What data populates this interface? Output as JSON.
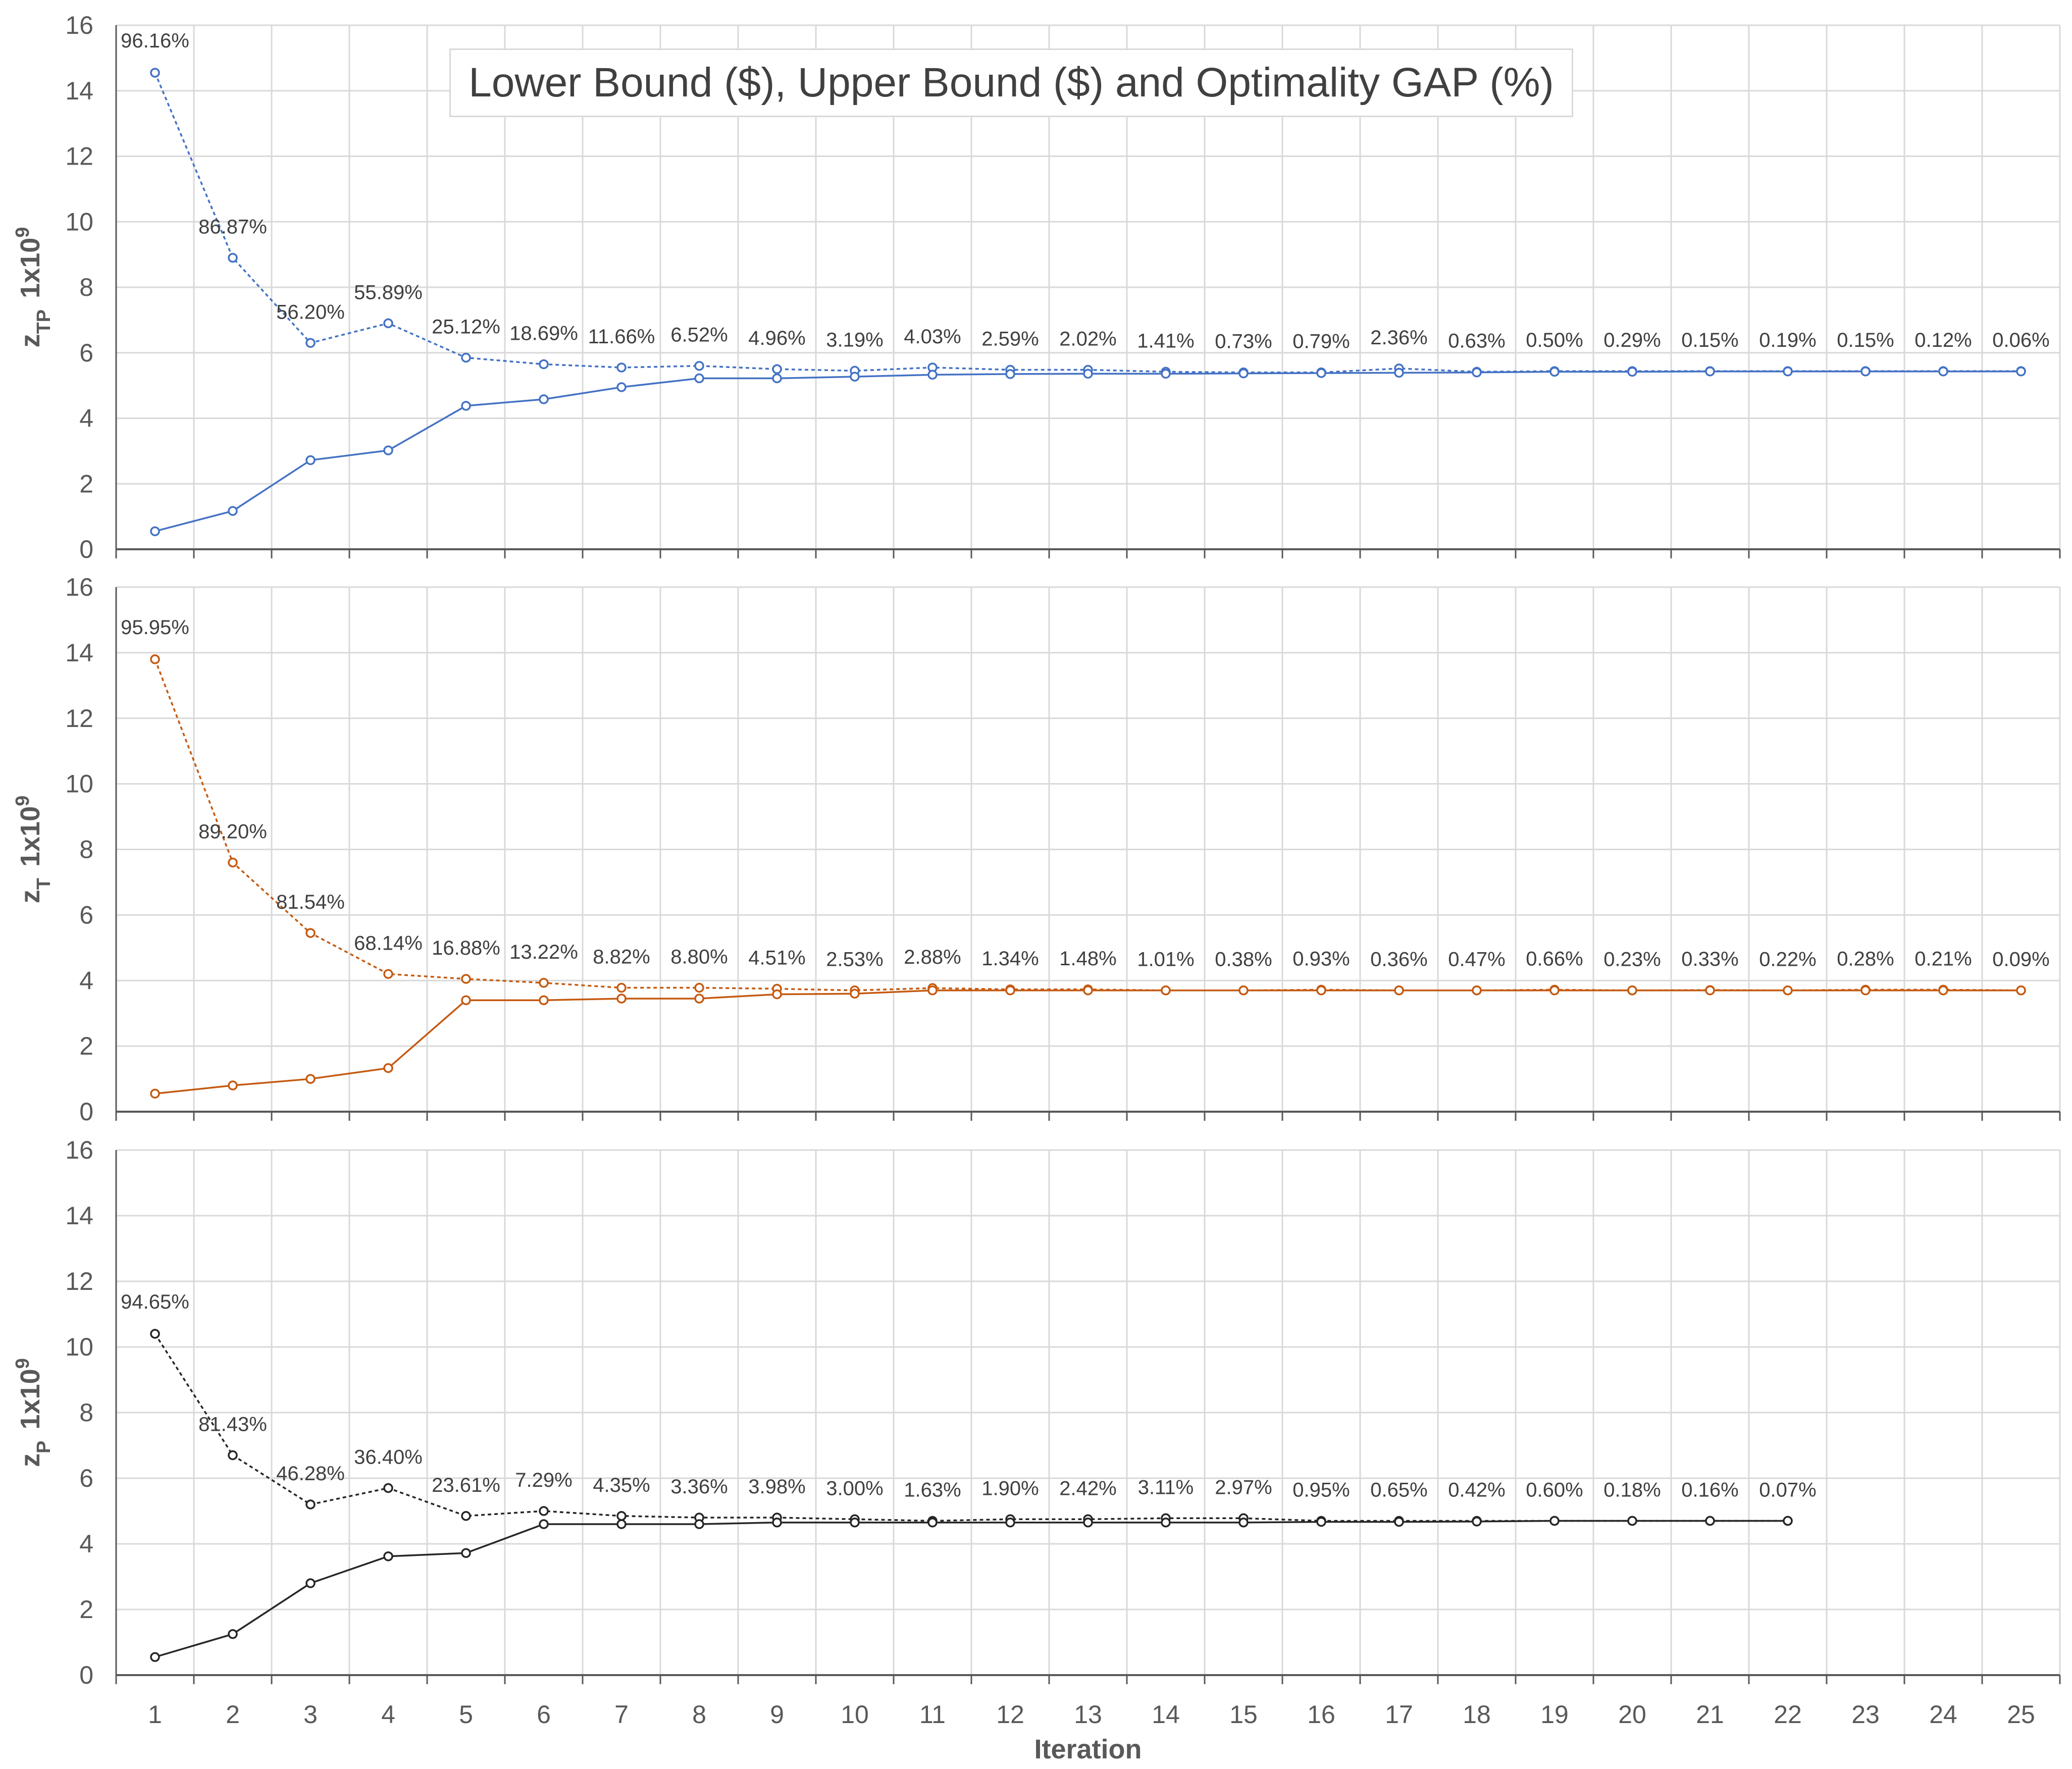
{
  "chart_data": {
    "type": "line",
    "title": "Lower Bound ($), Upper Bound ($) and Optimality GAP (%)",
    "xlabel": "Iteration",
    "grid": true,
    "panels": [
      {
        "ylabel_main": "z",
        "ylabel_sub": "TP",
        "ylabel_scale": "1x10",
        "ylabel_exp": "9",
        "color": "#4472C4",
        "ylim": [
          0,
          16
        ],
        "yticks": [
          "0",
          "2",
          "4",
          "6",
          "8",
          "10",
          "12",
          "14",
          "16"
        ],
        "x": [
          1,
          2,
          3,
          4,
          5,
          6,
          7,
          8,
          9,
          10,
          11,
          12,
          13,
          14,
          15,
          16,
          17,
          18,
          19,
          20,
          21,
          22,
          23,
          24,
          25
        ],
        "series": [
          {
            "style": "dotted",
            "values": [
              14.55,
              8.9,
              6.3,
              6.9,
              5.85,
              5.65,
              5.55,
              5.6,
              5.5,
              5.45,
              5.55,
              5.48,
              5.48,
              5.42,
              5.4,
              5.4,
              5.52,
              5.42,
              5.44,
              5.44,
              5.44,
              5.44,
              5.44,
              5.44,
              5.44
            ]
          },
          {
            "style": "solid",
            "values": [
              0.55,
              1.17,
              2.72,
              3.02,
              4.38,
              4.58,
              4.95,
              5.22,
              5.22,
              5.27,
              5.33,
              5.35,
              5.36,
              5.36,
              5.37,
              5.38,
              5.39,
              5.4,
              5.42,
              5.42,
              5.43,
              5.43,
              5.43,
              5.43,
              5.43
            ]
          }
        ],
        "gap_labels": [
          "96.16%",
          "86.87%",
          "56.20%",
          "55.89%",
          "25.12%",
          "18.69%",
          "11.66%",
          "6.52%",
          "4.96%",
          "3.19%",
          "4.03%",
          "2.59%",
          "2.02%",
          "1.41%",
          "0.73%",
          "0.79%",
          "2.36%",
          "0.63%",
          "0.50%",
          "0.29%",
          "0.15%",
          "0.19%",
          "0.15%",
          "0.12%",
          "0.06%"
        ]
      },
      {
        "ylabel_main": "z",
        "ylabel_sub": "T",
        "ylabel_scale": "1x10",
        "ylabel_exp": "9",
        "color": "#C55A11",
        "ylim": [
          0,
          16
        ],
        "yticks": [
          "0",
          "2",
          "4",
          "6",
          "8",
          "10",
          "12",
          "14",
          "16"
        ],
        "x": [
          1,
          2,
          3,
          4,
          5,
          6,
          7,
          8,
          9,
          10,
          11,
          12,
          13,
          14,
          15,
          16,
          17,
          18,
          19,
          20,
          21,
          22,
          23,
          24,
          25
        ],
        "series": [
          {
            "style": "dotted",
            "values": [
              13.8,
              7.6,
              5.45,
              4.2,
              4.05,
              3.93,
              3.78,
              3.78,
              3.75,
              3.7,
              3.77,
              3.73,
              3.73,
              3.7,
              3.7,
              3.72,
              3.7,
              3.7,
              3.72,
              3.7,
              3.71,
              3.7,
              3.72,
              3.72,
              3.7
            ]
          },
          {
            "style": "solid",
            "values": [
              0.55,
              0.8,
              1.0,
              1.33,
              3.4,
              3.4,
              3.45,
              3.45,
              3.58,
              3.6,
              3.7,
              3.7,
              3.7,
              3.7,
              3.7,
              3.7,
              3.7,
              3.7,
              3.7,
              3.7,
              3.7,
              3.7,
              3.7,
              3.7,
              3.7
            ]
          }
        ],
        "gap_labels": [
          "95.95%",
          "89.20%",
          "81.54%",
          "68.14%",
          "16.88%",
          "13.22%",
          "8.82%",
          "8.80%",
          "4.51%",
          "2.53%",
          "2.88%",
          "1.34%",
          "1.48%",
          "1.01%",
          "0.38%",
          "0.93%",
          "0.36%",
          "0.47%",
          "0.66%",
          "0.23%",
          "0.33%",
          "0.22%",
          "0.28%",
          "0.21%",
          "0.09%"
        ]
      },
      {
        "ylabel_main": "z",
        "ylabel_sub": "P",
        "ylabel_scale": "1x10",
        "ylabel_exp": "9",
        "color": "#262626",
        "ylim": [
          0,
          16
        ],
        "yticks": [
          "0",
          "2",
          "4",
          "6",
          "8",
          "10",
          "12",
          "14",
          "16"
        ],
        "x": [
          1,
          2,
          3,
          4,
          5,
          6,
          7,
          8,
          9,
          10,
          11,
          12,
          13,
          14,
          15,
          16,
          17,
          18,
          19,
          20,
          21,
          22
        ],
        "series": [
          {
            "style": "dotted",
            "values": [
              10.4,
              6.7,
              5.2,
              5.7,
              4.85,
              5.0,
              4.85,
              4.8,
              4.8,
              4.75,
              4.7,
              4.75,
              4.75,
              4.78,
              4.78,
              4.7,
              4.7,
              4.7,
              4.7,
              4.7,
              4.7,
              4.7
            ]
          },
          {
            "style": "solid",
            "values": [
              0.55,
              1.25,
              2.8,
              3.62,
              3.72,
              4.6,
              4.6,
              4.6,
              4.65,
              4.65,
              4.65,
              4.65,
              4.65,
              4.65,
              4.65,
              4.67,
              4.67,
              4.68,
              4.7,
              4.7,
              4.7,
              4.7
            ]
          }
        ],
        "gap_labels": [
          "94.65%",
          "81.43%",
          "46.28%",
          "36.40%",
          "23.61%",
          "7.29%",
          "4.35%",
          "3.36%",
          "3.98%",
          "3.00%",
          "1.63%",
          "1.90%",
          "2.42%",
          "3.11%",
          "2.97%",
          "0.95%",
          "0.65%",
          "0.42%",
          "0.60%",
          "0.18%",
          "0.16%",
          "0.07%"
        ]
      }
    ],
    "xticks": [
      "1",
      "2",
      "3",
      "4",
      "5",
      "6",
      "7",
      "8",
      "9",
      "10",
      "11",
      "12",
      "13",
      "14",
      "15",
      "16",
      "17",
      "18",
      "19",
      "20",
      "21",
      "22",
      "23",
      "24",
      "25"
    ]
  }
}
